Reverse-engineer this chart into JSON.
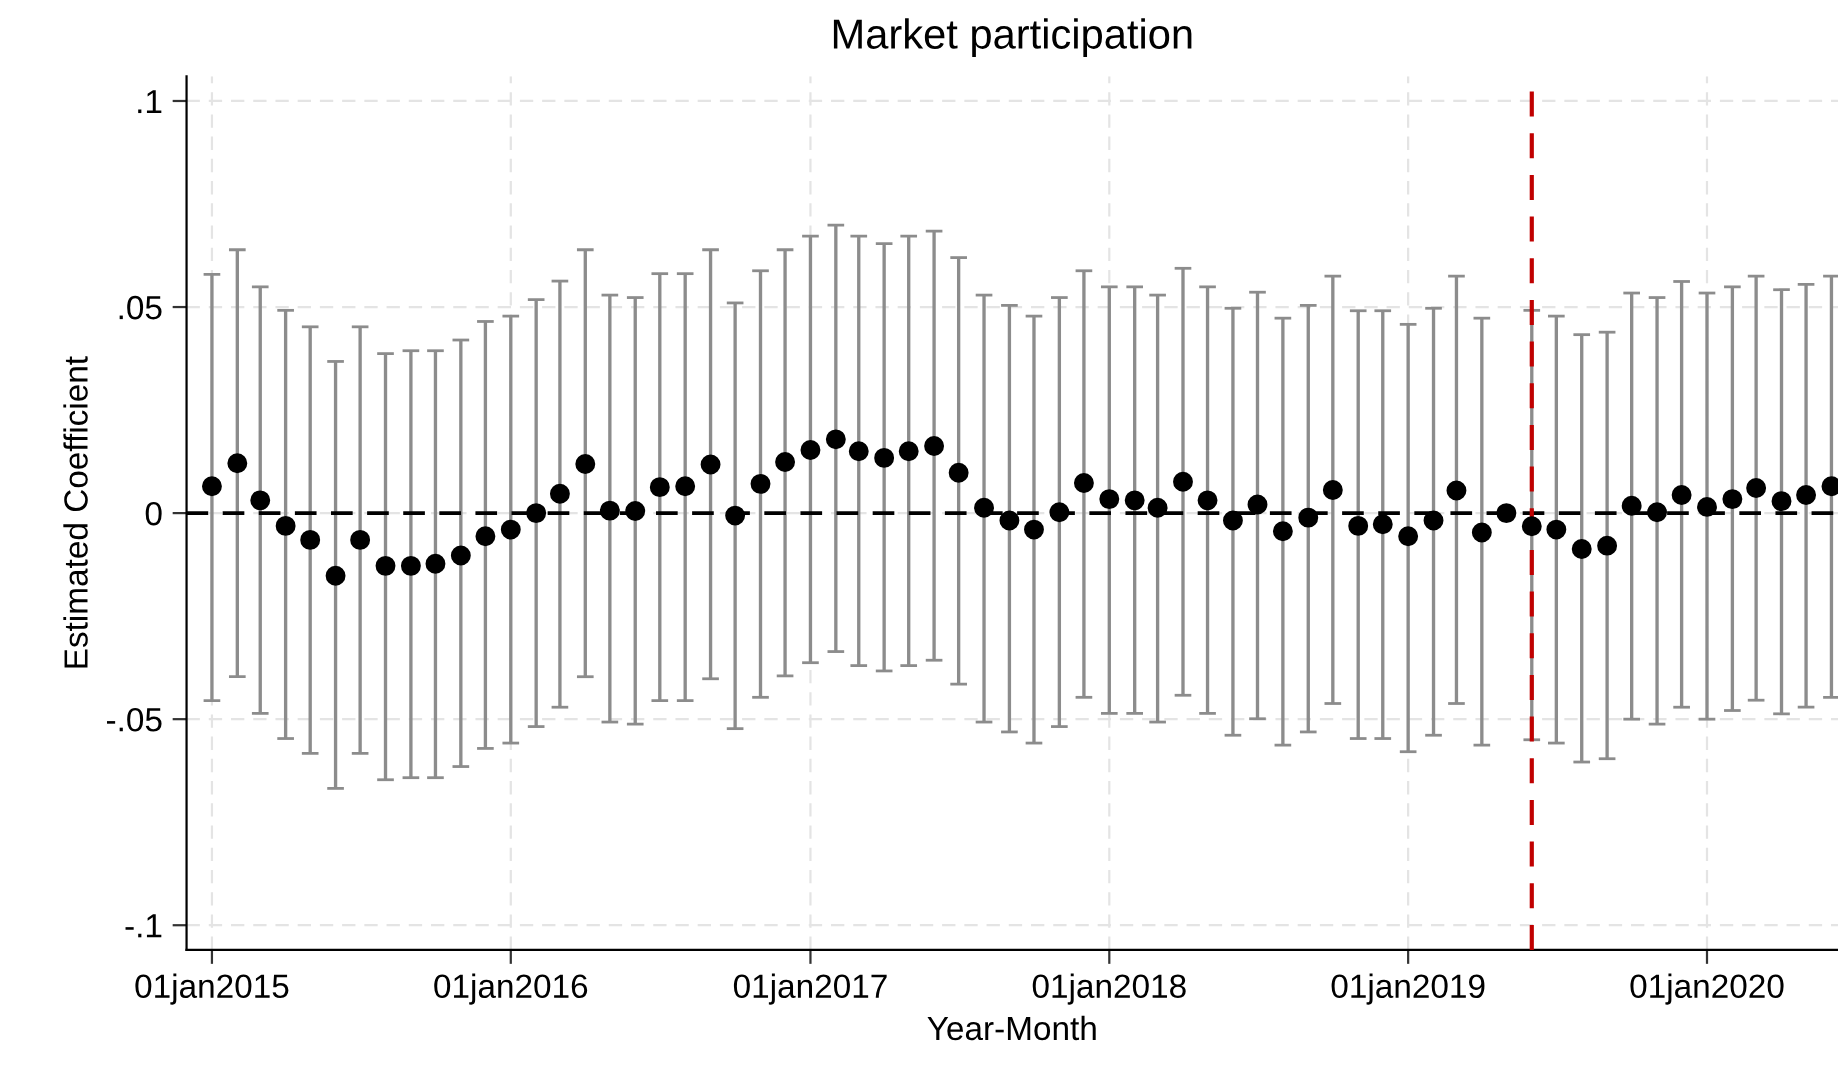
{
  "chart_data": {
    "type": "scatter",
    "title": "Market participation",
    "xlabel": "Year-Month",
    "ylabel": "Estimated Coefficient",
    "x": [
      "2015-01",
      "2015-02",
      "2015-03",
      "2015-04",
      "2015-05",
      "2015-06",
      "2015-07",
      "2015-08",
      "2015-09",
      "2015-10",
      "2015-11",
      "2015-12",
      "2016-01",
      "2016-02",
      "2016-03",
      "2016-04",
      "2016-05",
      "2016-06",
      "2016-07",
      "2016-08",
      "2016-09",
      "2016-10",
      "2016-11",
      "2016-12",
      "2017-01",
      "2017-02",
      "2017-03",
      "2017-04",
      "2017-05",
      "2017-06",
      "2017-07",
      "2017-08",
      "2017-09",
      "2017-10",
      "2017-11",
      "2017-12",
      "2018-01",
      "2018-02",
      "2018-03",
      "2018-04",
      "2018-05",
      "2018-06",
      "2018-07",
      "2018-08",
      "2018-09",
      "2018-10",
      "2018-11",
      "2018-12",
      "2019-01",
      "2019-02",
      "2019-03",
      "2019-04",
      "2019-05",
      "2019-06",
      "2019-07",
      "2019-08",
      "2019-09",
      "2019-10",
      "2019-11",
      "2019-12",
      "2020-01",
      "2020-02",
      "2020-03",
      "2020-04",
      "2020-05",
      "2020-06"
    ],
    "series": [
      {
        "color": "#000000",
        "values": [
          0.0065,
          0.0121,
          0.0031,
          -0.0031,
          -0.0065,
          -0.0152,
          -0.0065,
          -0.0128,
          -0.0128,
          -0.0123,
          -0.0103,
          -0.0056,
          -0.004,
          0.0,
          0.0047,
          0.0119,
          0.0006,
          0.0005,
          0.0063,
          0.0065,
          0.0118,
          -0.0006,
          0.0071,
          0.0124,
          0.0153,
          0.0179,
          0.015,
          0.0134,
          0.015,
          0.0163,
          0.0098,
          0.0013,
          -0.0018,
          -0.004,
          0.0002,
          0.0073,
          0.0034,
          0.0031,
          0.0013,
          0.0076,
          0.0031,
          -0.0018,
          0.0021,
          -0.0044,
          -0.0011,
          0.0056,
          -0.0031,
          -0.0027,
          -0.0056,
          -0.0018,
          0.0055,
          -0.0047,
          0.0,
          -0.0032,
          -0.004,
          -0.0087,
          -0.0079,
          0.0018,
          0.0002,
          0.0044,
          0.0015,
          0.0034,
          0.0061,
          0.0029,
          0.0044,
          0.0065
        ],
        "errors": [
          [
            -0.0455,
            0.0579
          ],
          [
            -0.0397,
            0.0639
          ],
          [
            -0.0486,
            0.0549
          ],
          [
            -0.0547,
            0.0492
          ],
          [
            -0.0583,
            0.0452
          ],
          [
            -0.0668,
            0.0368
          ],
          [
            -0.0583,
            0.0452
          ],
          [
            -0.0647,
            0.0387
          ],
          [
            -0.0642,
            0.0394
          ],
          [
            -0.0642,
            0.0394
          ],
          [
            -0.0615,
            0.042
          ],
          [
            -0.0571,
            0.0465
          ],
          [
            -0.0558,
            0.0478
          ],
          [
            -0.0518,
            0.0518
          ],
          [
            -0.0471,
            0.0563
          ],
          [
            -0.0397,
            0.0639
          ],
          [
            -0.0507,
            0.0529
          ],
          [
            -0.0512,
            0.0523
          ],
          [
            -0.0455,
            0.0581
          ],
          [
            -0.0455,
            0.0581
          ],
          [
            -0.0402,
            0.0639
          ],
          [
            -0.0523,
            0.051
          ],
          [
            -0.0447,
            0.0588
          ],
          [
            -0.0395,
            0.0639
          ],
          [
            -0.0363,
            0.0672
          ],
          [
            -0.0336,
            0.0699
          ],
          [
            -0.037,
            0.0672
          ],
          [
            -0.0383,
            0.0654
          ],
          [
            -0.037,
            0.0672
          ],
          [
            -0.0357,
            0.0684
          ],
          [
            -0.0415,
            0.062
          ],
          [
            -0.0507,
            0.0529
          ],
          [
            -0.0531,
            0.0504
          ],
          [
            -0.0558,
            0.0478
          ],
          [
            -0.0518,
            0.0523
          ],
          [
            -0.0447,
            0.0588
          ],
          [
            -0.0486,
            0.0549
          ],
          [
            -0.0486,
            0.0549
          ],
          [
            -0.0507,
            0.0529
          ],
          [
            -0.0442,
            0.0594
          ],
          [
            -0.0486,
            0.0549
          ],
          [
            -0.0539,
            0.0497
          ],
          [
            -0.0499,
            0.0536
          ],
          [
            -0.0563,
            0.0473
          ],
          [
            -0.0531,
            0.0504
          ],
          [
            -0.0462,
            0.0575
          ],
          [
            -0.0547,
            0.0491
          ],
          [
            -0.0547,
            0.0491
          ],
          [
            -0.0579,
            0.0458
          ],
          [
            -0.0539,
            0.0497
          ],
          [
            -0.0462,
            0.0575
          ],
          [
            -0.0563,
            0.0473
          ],
          null,
          [
            -0.055,
            0.0492
          ],
          [
            -0.0558,
            0.0478
          ],
          [
            -0.0604,
            0.0433
          ],
          [
            -0.0596,
            0.0439
          ],
          [
            -0.05,
            0.0534
          ],
          [
            -0.0512,
            0.0523
          ],
          [
            -0.0471,
            0.0562
          ],
          [
            -0.05,
            0.0534
          ],
          [
            -0.0479,
            0.0549
          ],
          [
            -0.0454,
            0.0575
          ],
          [
            -0.0487,
            0.0542
          ],
          [
            -0.0471,
            0.0555
          ],
          [
            -0.0447,
            0.0575
          ]
        ]
      }
    ],
    "marker": "circle",
    "grid": true,
    "xlim": [
      "2014-12-01",
      "2020-06-09"
    ],
    "xticks": [
      {
        "value": "2015-01-01",
        "label": "01jan2015"
      },
      {
        "value": "2016-01-01",
        "label": "01jan2016"
      },
      {
        "value": "2017-01-01",
        "label": "01jan2017"
      },
      {
        "value": "2018-01-01",
        "label": "01jan2018"
      },
      {
        "value": "2019-01-01",
        "label": "01jan2019"
      },
      {
        "value": "2020-01-01",
        "label": "01jan2020"
      }
    ],
    "ylim": [
      -0.106,
      0.106
    ],
    "yticks": [
      {
        "value": -0.1,
        "label": "-.1"
      },
      {
        "value": -0.05,
        "label": "-.05"
      },
      {
        "value": 0,
        "label": "0"
      },
      {
        "value": 0.05,
        "label": ".05"
      },
      {
        "value": 0.1,
        "label": ".1"
      }
    ],
    "ref_lines": [
      {
        "axis": "y",
        "value": 0,
        "color": "#000000",
        "line_style": "dashed"
      },
      {
        "axis": "x",
        "value": "2019-06-01",
        "color": "#c00000",
        "line_style": "dashed"
      }
    ]
  }
}
